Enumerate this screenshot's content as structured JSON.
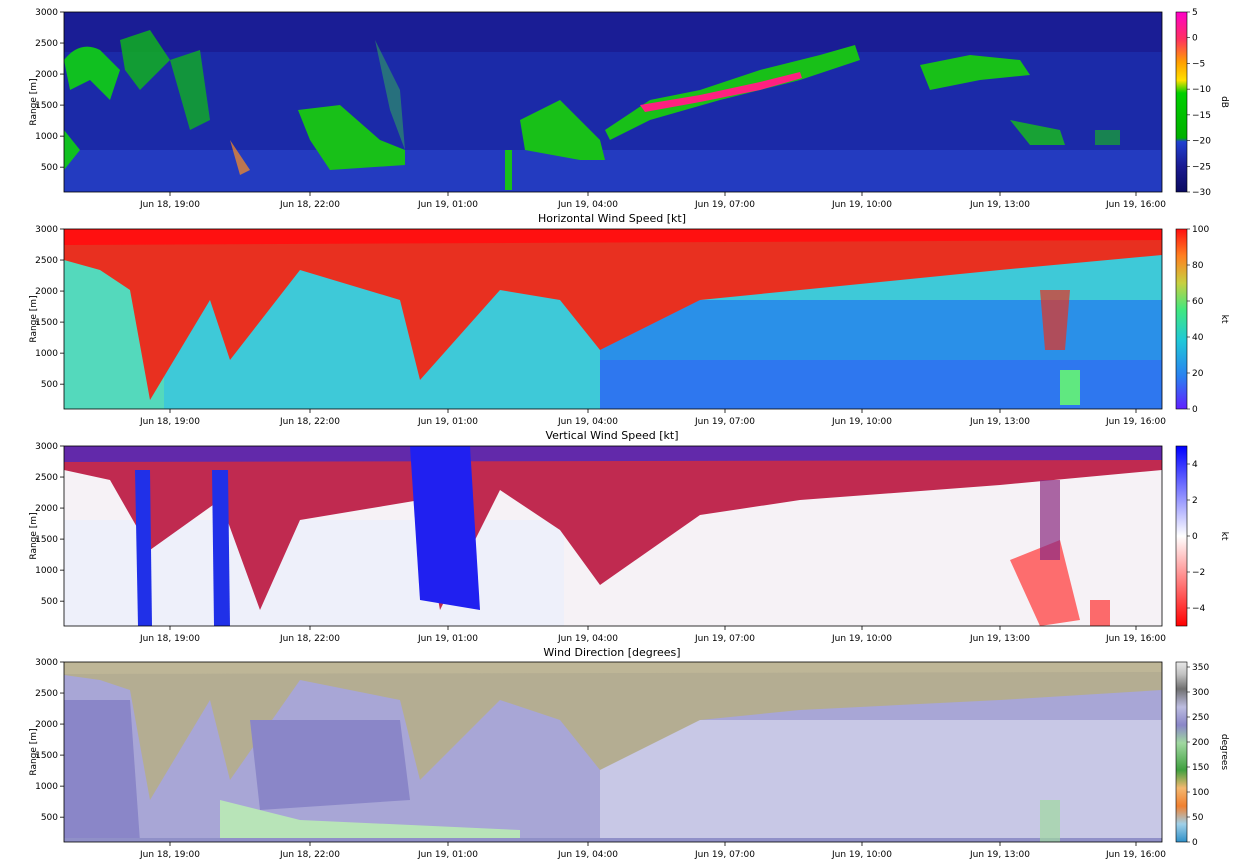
{
  "chart_data": [
    {
      "type": "heatmap",
      "title": "",
      "ylabel": "Range [m]",
      "ylim": [
        100,
        3000
      ],
      "yticks": [
        500,
        1000,
        1500,
        2000,
        2500,
        3000
      ],
      "xlim": [
        "Jun 18, 17:00",
        "Jun 19, 16:40"
      ],
      "xtick_values": [
        "2024-06-18T19:00",
        "2024-06-18T22:00",
        "2024-06-19T01:00",
        "2024-06-19T04:00",
        "2024-06-19T07:00",
        "2024-06-19T10:00",
        "2024-06-19T13:00",
        "2024-06-19T16:00"
      ],
      "xticks": [
        "Jun 18, 19:00",
        "Jun 18, 22:00",
        "Jun 19, 01:00",
        "Jun 19, 04:00",
        "Jun 19, 07:00",
        "Jun 19, 10:00",
        "Jun 19, 13:00",
        "Jun 19, 16:00"
      ],
      "colorbar": {
        "label": "dB",
        "range": [
          -30,
          5
        ],
        "ticks": [
          "5",
          "0",
          "−5",
          "−10",
          "−15",
          "−20",
          "−25",
          "−30"
        ],
        "colors": [
          "#ff00c8",
          "#ff3060",
          "#ffa000",
          "#ffe000",
          "#00d000",
          "#00b000",
          "#2040d0",
          "#1a1a90",
          "#0a0a60"
        ]
      },
      "grid": false
    },
    {
      "type": "heatmap",
      "title": "Horizontal Wind Speed [kt]",
      "ylabel": "Range [m]",
      "ylim": [
        100,
        3000
      ],
      "yticks": [
        500,
        1000,
        1500,
        2000,
        2500,
        3000
      ],
      "xticks": [
        "Jun 18, 19:00",
        "Jun 18, 22:00",
        "Jun 19, 01:00",
        "Jun 19, 04:00",
        "Jun 19, 07:00",
        "Jun 19, 10:00",
        "Jun 19, 13:00",
        "Jun 19, 16:00"
      ],
      "colorbar": {
        "label": "kt",
        "range": [
          0,
          100
        ],
        "ticks": [
          "100",
          "80",
          "60",
          "40",
          "20",
          "0"
        ],
        "colors": [
          "#ff1010",
          "#ff8020",
          "#c8d040",
          "#40e880",
          "#20c8d8",
          "#2a80f0",
          "#6020ff"
        ]
      },
      "grid": false
    },
    {
      "type": "heatmap",
      "title": "Vertical Wind Speed [kt]",
      "ylabel": "Range [m]",
      "ylim": [
        100,
        3000
      ],
      "yticks": [
        500,
        1000,
        1500,
        2000,
        2500,
        3000
      ],
      "xticks": [
        "Jun 18, 19:00",
        "Jun 18, 22:00",
        "Jun 19, 01:00",
        "Jun 19, 04:00",
        "Jun 19, 07:00",
        "Jun 19, 10:00",
        "Jun 19, 13:00",
        "Jun 19, 16:00"
      ],
      "colorbar": {
        "label": "kt",
        "range": [
          -5,
          5
        ],
        "ticks": [
          "4",
          "2",
          "0",
          "−2",
          "−4"
        ],
        "colors": [
          "#0000ff",
          "#8080ff",
          "#ffffff",
          "#ff8080",
          "#ff0000"
        ]
      },
      "grid": false
    },
    {
      "type": "heatmap",
      "title": "Wind Direction [degrees]",
      "ylabel": "Range [m]",
      "ylim": [
        100,
        3000
      ],
      "yticks": [
        500,
        1000,
        1500,
        2000,
        2500,
        3000
      ],
      "xticks": [
        "Jun 18, 19:00",
        "Jun 18, 22:00",
        "Jun 19, 01:00",
        "Jun 19, 04:00",
        "Jun 19, 07:00",
        "Jun 19, 10:00",
        "Jun 19, 13:00",
        "Jun 19, 16:00"
      ],
      "colorbar": {
        "label": "degrees",
        "range": [
          0,
          360
        ],
        "ticks": [
          "350",
          "300",
          "250",
          "200",
          "150",
          "100",
          "50",
          "0"
        ],
        "colors": [
          "#e8e8e8",
          "#c0c0c0",
          "#707070",
          "#bcbce0",
          "#8a86c8",
          "#a0d8a0",
          "#40a040",
          "#f4b870",
          "#f08030",
          "#a0d0e8",
          "#2f90c8"
        ]
      },
      "grid": false
    }
  ]
}
